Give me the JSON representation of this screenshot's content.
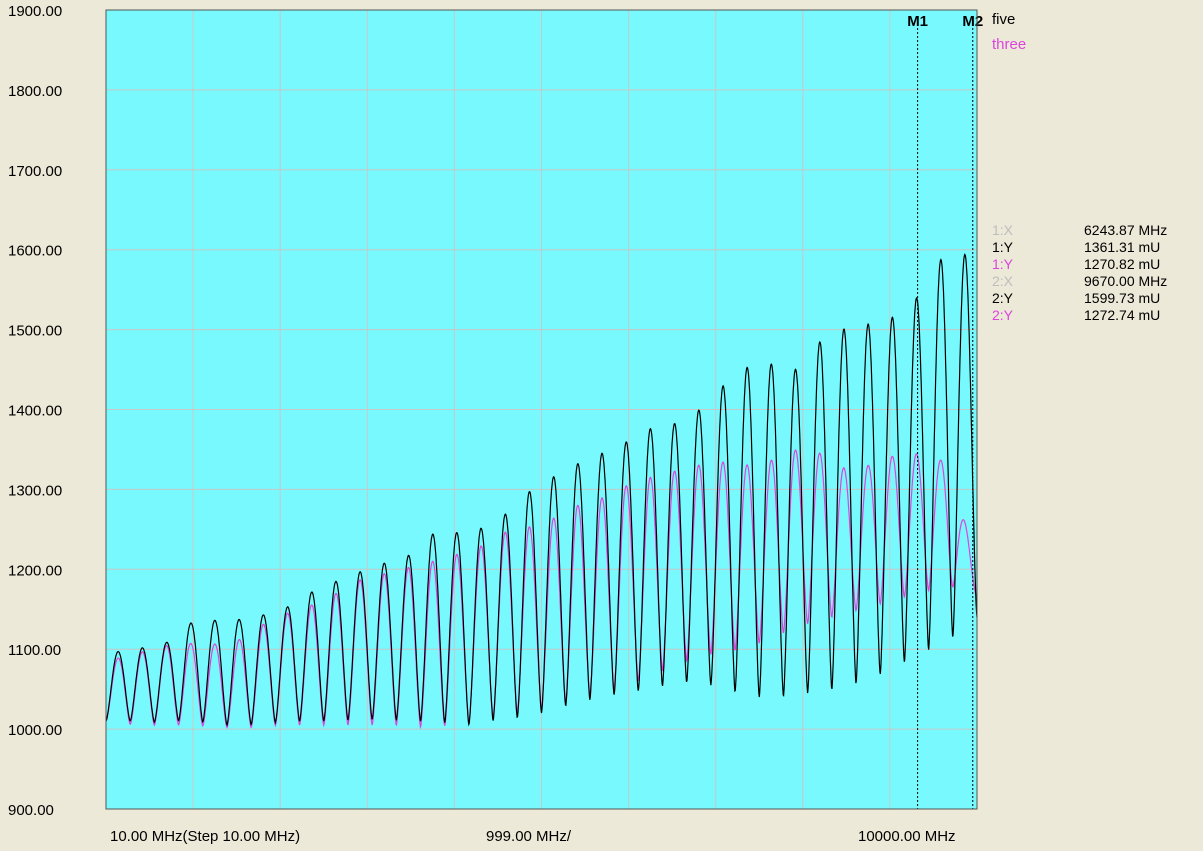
{
  "colors": {
    "background": "#ece9d8",
    "plot_background": "#77f9fd",
    "grid": "#c8c8c8",
    "series_five": "#000000",
    "series_three": "#dd44dd",
    "readout_dim": "#bdbdbd"
  },
  "chart_data": {
    "type": "line",
    "x_scale": "log",
    "xlim": [
      10,
      10000
    ],
    "ylim": [
      900,
      1900
    ],
    "y_ticks": [
      "1900.00",
      "1800.00",
      "1700.00",
      "1600.00",
      "1500.00",
      "1400.00",
      "1300.00",
      "1200.00",
      "1100.00",
      "1000.00",
      "900.00"
    ],
    "x_labels": {
      "start": "10.00 MHz(Step 10.00 MHz)",
      "middle": "999.00 MHz/",
      "end": "10000.00 MHz"
    },
    "grid": true,
    "legend_position": "top-right",
    "series": [
      {
        "name": "five",
        "color": "#000000",
        "ripple_count": 36,
        "peaks": [
          1095,
          1100,
          1108,
          1138,
          1135,
          1140,
          1152,
          1175,
          1190,
          1205,
          1215,
          1248,
          1245,
          1258,
          1295,
          1318,
          1338,
          1352,
          1375,
          1383,
          1405,
          1450,
          1458,
          1450,
          1495,
          1505,
          1510,
          1540,
          1600,
          1590
        ],
        "troughs": [
          1010,
          1010,
          1008,
          1012,
          1005,
          1005,
          1008,
          1010,
          1010,
          1012,
          1012,
          1010,
          1008,
          1005,
          1012,
          1015,
          1025,
          1035,
          1042,
          1048,
          1055,
          1060,
          1050,
          1040,
          1040,
          1045,
          1050,
          1060,
          1075,
          1095,
          1110,
          1140
        ]
      },
      {
        "name": "three",
        "color": "#dd44dd",
        "ripple_count": 36,
        "peaks": [
          1085,
          1095,
          1105,
          1108,
          1105,
          1130,
          1148,
          1160,
          1185,
          1195,
          1205,
          1215,
          1228,
          1250,
          1255,
          1278,
          1290,
          1310,
          1320,
          1330,
          1335,
          1328,
          1350,
          1345,
          1320,
          1340,
          1345,
          1335,
          1210
        ],
        "troughs": [
          1010,
          1005,
          1005,
          1005,
          1002,
          1002,
          1005,
          1005,
          1005,
          1005,
          1005,
          1002,
          1005,
          1012,
          1020,
          1025,
          1035,
          1045,
          1055,
          1070,
          1085,
          1095,
          1100,
          1115,
          1130,
          1140,
          1150,
          1160,
          1170,
          1180,
          1165
        ]
      }
    ],
    "markers": [
      {
        "label": "M1",
        "x": 6243.87
      },
      {
        "label": "M2",
        "x": 9670.0
      }
    ]
  },
  "legend": {
    "five": "five",
    "three": "three"
  },
  "readouts": [
    {
      "key": "1:X",
      "value": "6243.87 MHz",
      "style": "dim"
    },
    {
      "key": "1:Y",
      "value": "1361.31 mU",
      "style": "five"
    },
    {
      "key": "1:Y",
      "value": "1270.82 mU",
      "style": "three"
    },
    {
      "key": "2:X",
      "value": "9670.00 MHz",
      "style": "dim"
    },
    {
      "key": "2:Y",
      "value": "1599.73 mU",
      "style": "five"
    },
    {
      "key": "2:Y",
      "value": "1272.74 mU",
      "style": "three"
    }
  ]
}
